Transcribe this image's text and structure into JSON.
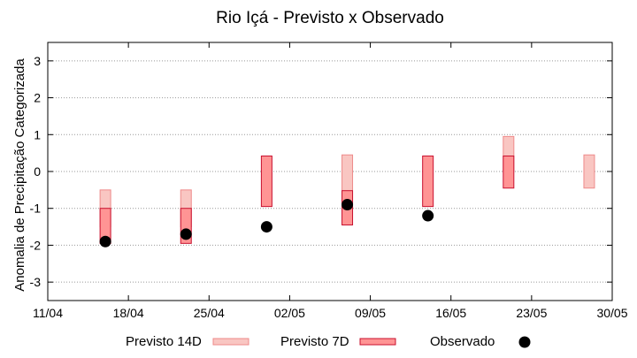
{
  "chart_data": {
    "type": "bar",
    "title": "Rio Içá - Previsto x Observado",
    "xlabel": "",
    "ylabel": "Anomalia de Precipitação Categorizada",
    "x_axis": {
      "min": "2024-04-11",
      "max": "2024-05-30",
      "tick_labels": [
        "11/04",
        "18/04",
        "25/04",
        "02/05",
        "09/05",
        "16/05",
        "23/05",
        "30/05"
      ]
    },
    "ylim": [
      -3.5,
      3.5
    ],
    "y_ticks": [
      3,
      2,
      1,
      0,
      -1,
      -2,
      -3
    ],
    "grid": "horizontal dotted",
    "legend_position": "bottom",
    "series": [
      {
        "name": "Previsto 14D",
        "kind": "range",
        "color_fill": "#f9c6c2",
        "color_edge": "#ee8a8a",
        "points": [
          {
            "x": "2024-04-16",
            "low": -1.5,
            "high": -0.5
          },
          {
            "x": "2024-04-23",
            "low": -1.5,
            "high": -0.5
          },
          {
            "x": "2024-05-07",
            "low": -1.0,
            "high": 0.45
          },
          {
            "x": "2024-05-21",
            "low": 0.0,
            "high": 0.95
          },
          {
            "x": "2024-05-28",
            "low": -0.45,
            "high": 0.45
          }
        ]
      },
      {
        "name": "Previsto 7D",
        "kind": "range",
        "color_fill": "#ff9494",
        "color_edge": "#c8102e",
        "points": [
          {
            "x": "2024-04-16",
            "low": -1.95,
            "high": -1.0
          },
          {
            "x": "2024-04-23",
            "low": -1.95,
            "high": -1.0
          },
          {
            "x": "2024-04-30",
            "low": -0.95,
            "high": 0.42
          },
          {
            "x": "2024-05-07",
            "low": -1.45,
            "high": -0.52
          },
          {
            "x": "2024-05-14",
            "low": -0.95,
            "high": 0.42
          },
          {
            "x": "2024-05-21",
            "low": -0.45,
            "high": 0.42
          }
        ]
      },
      {
        "name": "Observado",
        "kind": "point",
        "color": "#000000",
        "points": [
          {
            "x": "2024-04-16",
            "y": -1.9
          },
          {
            "x": "2024-04-23",
            "y": -1.7
          },
          {
            "x": "2024-04-30",
            "y": -1.5
          },
          {
            "x": "2024-05-07",
            "y": -0.9
          },
          {
            "x": "2024-05-14",
            "y": -1.2
          }
        ]
      }
    ]
  }
}
